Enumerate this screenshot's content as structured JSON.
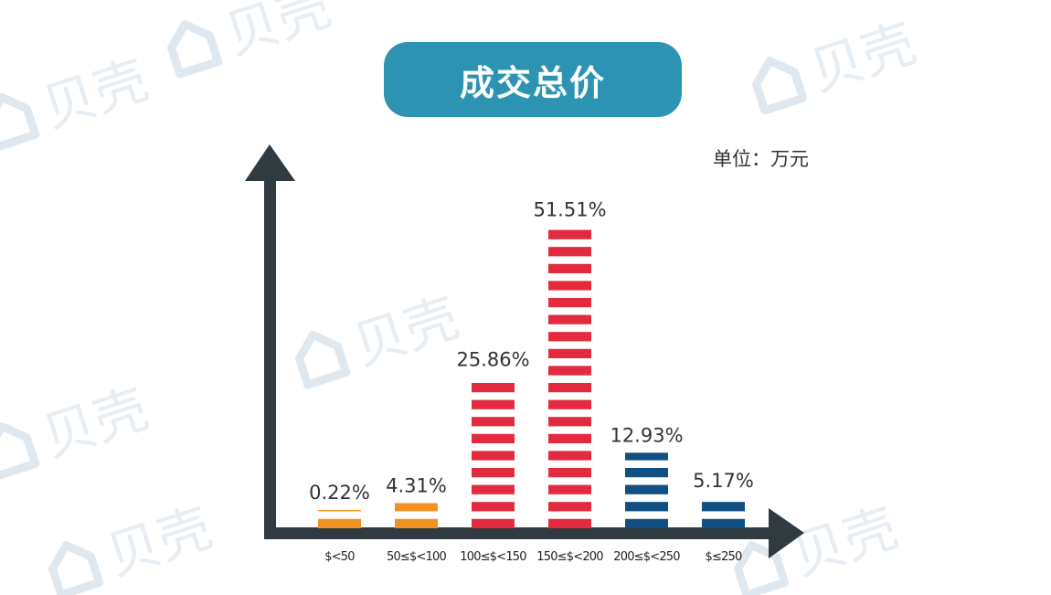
{
  "page": {
    "title": "成交总价",
    "unit": "单位：万元",
    "watermark_text": "贝壳"
  },
  "colors": {
    "title_bg": "#2d93b2",
    "axis": "#2f3a41",
    "orange": "#f39224",
    "red": "#e22b3e",
    "navy": "#114f82",
    "label": "#333333"
  },
  "chart_data": {
    "type": "bar",
    "title": "成交总价",
    "unit": "单位：万元",
    "categories": [
      "$<50",
      "50≤$<100",
      "100≤$<150",
      "150≤$<200",
      "200≤$<250",
      "$≤250"
    ],
    "values": [
      0.22,
      4.31,
      25.86,
      51.51,
      12.93,
      5.17
    ],
    "value_labels": [
      "0.22%",
      "4.31%",
      "25.86%",
      "51.51%",
      "12.93%",
      "5.17%"
    ],
    "bar_colors": [
      "orange",
      "orange",
      "red",
      "red",
      "navy",
      "navy"
    ],
    "ylim": [
      0,
      100
    ],
    "grid": false,
    "legend": "none"
  }
}
